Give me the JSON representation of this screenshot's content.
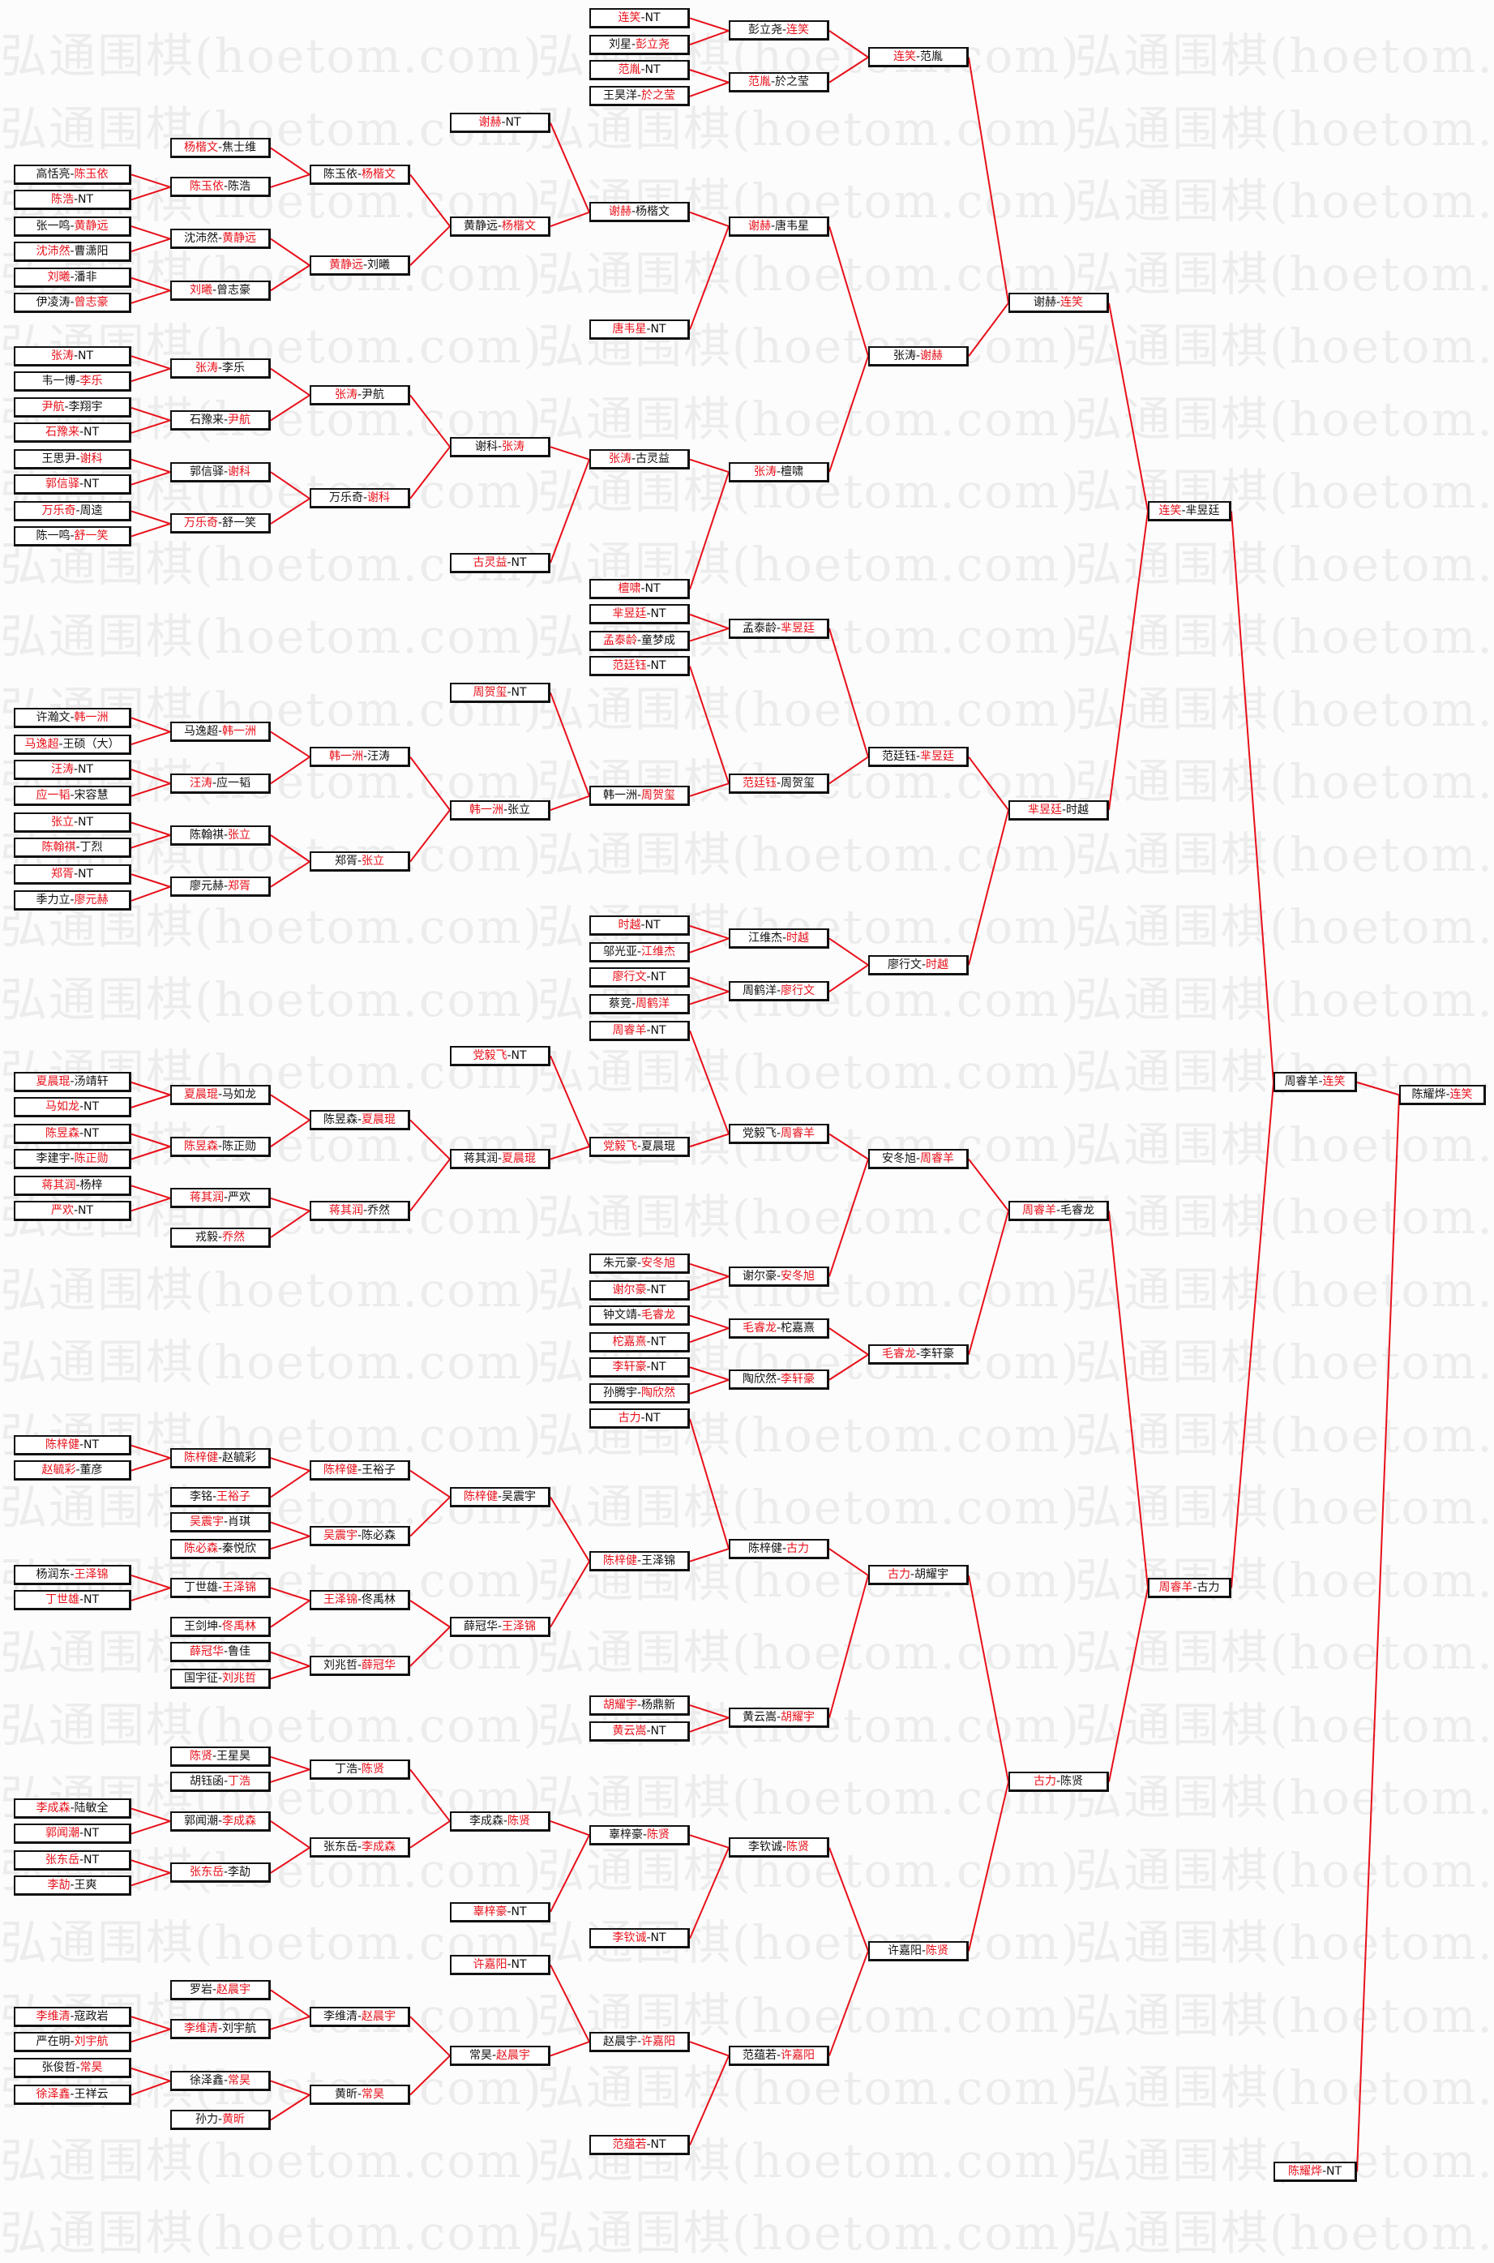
{
  "watermark": "弘通围棋(hoetom.com)",
  "colors": {
    "winner": "#e8101a",
    "line": "#e8101a",
    "box_border": "#111111",
    "text": "#111111"
  },
  "separator": "-",
  "bracket": {
    "columns": [
      [
        {
          "a": "高恬亮",
          "b": "陈玉依",
          "w": "b"
        },
        {
          "a": "陈浩",
          "b": "NT",
          "w": "a"
        },
        {
          "a": "张一鸣",
          "b": "黄静远",
          "w": "b"
        },
        {
          "a": "沈沛然",
          "b": "曹潇阳",
          "w": "a"
        },
        {
          "a": "刘曦",
          "b": "潘非",
          "w": "a"
        },
        {
          "a": "伊凌涛",
          "b": "曾志豪",
          "w": "b"
        },
        {
          "a": "张涛",
          "b": "NT",
          "w": "a"
        },
        {
          "a": "韦一博",
          "b": "李乐",
          "w": "b"
        },
        {
          "a": "尹航",
          "b": "李翔宇",
          "w": "a"
        },
        {
          "a": "石豫来",
          "b": "NT",
          "w": "a"
        },
        {
          "a": "王思尹",
          "b": "谢科",
          "w": "b"
        },
        {
          "a": "郭信驿",
          "b": "NT",
          "w": "a"
        },
        {
          "a": "万乐奇",
          "b": "周逵",
          "w": "a"
        },
        {
          "a": "陈一鸣",
          "b": "舒一笑",
          "w": "b"
        },
        {
          "a": "许瀚文",
          "b": "韩一洲",
          "w": "b"
        },
        {
          "a": "马逸超",
          "b": "王硕（大）",
          "w": "a"
        },
        {
          "a": "汪涛",
          "b": "NT",
          "w": "a"
        },
        {
          "a": "应一韬",
          "b": "宋容慧",
          "w": "a"
        },
        {
          "a": "张立",
          "b": "NT",
          "w": "a"
        },
        {
          "a": "陈翰祺",
          "b": "丁烈",
          "w": "a"
        },
        {
          "a": "郑胥",
          "b": "NT",
          "w": "a"
        },
        {
          "a": "季力立",
          "b": "廖元赫",
          "w": "b"
        },
        {
          "a": "夏晨琨",
          "b": "汤靖轩",
          "w": "a"
        },
        {
          "a": "马如龙",
          "b": "NT",
          "w": "a"
        },
        {
          "a": "陈昱森",
          "b": "NT",
          "w": "a"
        },
        {
          "a": "李建宇",
          "b": "陈正勋",
          "w": "b"
        },
        {
          "a": "蒋其润",
          "b": "杨梓",
          "w": "a"
        },
        {
          "a": "严欢",
          "b": "NT",
          "w": "a"
        },
        {
          "a": "陈梓健",
          "b": "NT",
          "w": "a"
        },
        {
          "a": "赵毓彩",
          "b": "董彦",
          "w": "a"
        },
        {
          "a": "杨润东",
          "b": "王泽锦",
          "w": "b"
        },
        {
          "a": "丁世雄",
          "b": "NT",
          "w": "a"
        },
        {
          "a": "李成森",
          "b": "陆敏全",
          "w": "a"
        },
        {
          "a": "郭闻潮",
          "b": "NT",
          "w": "a"
        },
        {
          "a": "张东岳",
          "b": "NT",
          "w": "a"
        },
        {
          "a": "李劼",
          "b": "王爽",
          "w": "a"
        },
        {
          "a": "李维清",
          "b": "寇政岩",
          "w": "a"
        },
        {
          "a": "严在明",
          "b": "刘宇航",
          "w": "b"
        },
        {
          "a": "张俊哲",
          "b": "常昊",
          "w": "b"
        },
        {
          "a": "徐泽鑫",
          "b": "王祥云",
          "w": "a"
        }
      ],
      [
        {
          "a": "杨楷文",
          "b": "焦士维",
          "w": "a"
        },
        {
          "a": "陈玉依",
          "b": "陈浩",
          "w": "a"
        },
        {
          "a": "沈沛然",
          "b": "黄静远",
          "w": "b"
        },
        {
          "a": "刘曦",
          "b": "曾志豪",
          "w": "a"
        },
        {
          "a": "张涛",
          "b": "李乐",
          "w": "a"
        },
        {
          "a": "石豫来",
          "b": "尹航",
          "w": "b"
        },
        {
          "a": "郭信驿",
          "b": "谢科",
          "w": "b"
        },
        {
          "a": "万乐奇",
          "b": "舒一笑",
          "w": "a"
        },
        {
          "a": "马逸超",
          "b": "韩一洲",
          "w": "b"
        },
        {
          "a": "汪涛",
          "b": "应一韬",
          "w": "a"
        },
        {
          "a": "陈翰祺",
          "b": "张立",
          "w": "b"
        },
        {
          "a": "廖元赫",
          "b": "郑胥",
          "w": "b"
        },
        {
          "a": "夏晨琨",
          "b": "马如龙",
          "w": "a"
        },
        {
          "a": "陈昱森",
          "b": "陈正勋",
          "w": "a"
        },
        {
          "a": "蒋其润",
          "b": "严欢",
          "w": "a"
        },
        {
          "a": "戎毅",
          "b": "乔然",
          "w": "b"
        },
        {
          "a": "陈梓健",
          "b": "赵毓彩",
          "w": "a"
        },
        {
          "a": "李铭",
          "b": "王裕子",
          "w": "b"
        },
        {
          "a": "吴震宇",
          "b": "肖琪",
          "w": "a"
        },
        {
          "a": "陈必森",
          "b": "秦悦欣",
          "w": "a"
        },
        {
          "a": "丁世雄",
          "b": "王泽锦",
          "w": "b"
        },
        {
          "a": "王剑坤",
          "b": "佟禹林",
          "w": "b"
        },
        {
          "a": "薛冠华",
          "b": "鲁佳",
          "w": "a"
        },
        {
          "a": "国宇征",
          "b": "刘兆哲",
          "w": "b"
        },
        {
          "a": "陈贤",
          "b": "王星昊",
          "w": "a"
        },
        {
          "a": "胡钰函",
          "b": "丁浩",
          "w": "b"
        },
        {
          "a": "郭闻潮",
          "b": "李成森",
          "w": "b"
        },
        {
          "a": "张东岳",
          "b": "李劼",
          "w": "a"
        },
        {
          "a": "罗岩",
          "b": "赵晨宇",
          "w": "b"
        },
        {
          "a": "李维清",
          "b": "刘宇航",
          "w": "a"
        },
        {
          "a": "徐泽鑫",
          "b": "常昊",
          "w": "b"
        },
        {
          "a": "孙力",
          "b": "黄昕",
          "w": "b"
        }
      ],
      [
        {
          "a": "陈玉依",
          "b": "杨楷文",
          "w": "b"
        },
        {
          "a": "黄静远",
          "b": "刘曦",
          "w": "a"
        },
        {
          "a": "张涛",
          "b": "尹航",
          "w": "a"
        },
        {
          "a": "万乐奇",
          "b": "谢科",
          "w": "b"
        },
        {
          "a": "韩一洲",
          "b": "汪涛",
          "w": "a"
        },
        {
          "a": "郑胥",
          "b": "张立",
          "w": "b"
        },
        {
          "a": "陈昱森",
          "b": "夏晨琨",
          "w": "b"
        },
        {
          "a": "蒋其润",
          "b": "乔然",
          "w": "a"
        },
        {
          "a": "陈梓健",
          "b": "王裕子",
          "w": "a"
        },
        {
          "a": "吴震宇",
          "b": "陈必森",
          "w": "a"
        },
        {
          "a": "王泽锦",
          "b": "佟禹林",
          "w": "a"
        },
        {
          "a": "刘兆哲",
          "b": "薛冠华",
          "w": "b"
        },
        {
          "a": "丁浩",
          "b": "陈贤",
          "w": "b"
        },
        {
          "a": "张东岳",
          "b": "李成森",
          "w": "b"
        },
        {
          "a": "李维清",
          "b": "赵晨宇",
          "w": "b"
        },
        {
          "a": "黄昕",
          "b": "常昊",
          "w": "b"
        }
      ],
      [
        {
          "a": "谢赫",
          "b": "NT",
          "w": "a"
        },
        {
          "a": "黄静远",
          "b": "杨楷文",
          "w": "b"
        },
        {
          "a": "谢科",
          "b": "张涛",
          "w": "b"
        },
        {
          "a": "古灵益",
          "b": "NT",
          "w": "a"
        },
        {
          "a": "周贺玺",
          "b": "NT",
          "w": "a"
        },
        {
          "a": "韩一洲",
          "b": "张立",
          "w": "a"
        },
        {
          "a": "党毅飞",
          "b": "NT",
          "w": "a"
        },
        {
          "a": "蒋其润",
          "b": "夏晨琨",
          "w": "b"
        },
        {
          "a": "陈梓健",
          "b": "吴震宇",
          "w": "a"
        },
        {
          "a": "薛冠华",
          "b": "王泽锦",
          "w": "b"
        },
        {
          "a": "李成森",
          "b": "陈贤",
          "w": "b"
        },
        {
          "a": "辜梓豪",
          "b": "NT",
          "w": "a"
        },
        {
          "a": "许嘉阳",
          "b": "NT",
          "w": "a"
        },
        {
          "a": "常昊",
          "b": "赵晨宇",
          "w": "b"
        }
      ],
      [
        {
          "a": "连笑",
          "b": "NT",
          "w": "a"
        },
        {
          "a": "刘星",
          "b": "彭立尧",
          "w": "b"
        },
        {
          "a": "范胤",
          "b": "NT",
          "w": "a"
        },
        {
          "a": "王昊洋",
          "b": "於之莹",
          "w": "b"
        },
        {
          "a": "谢赫",
          "b": "杨楷文",
          "w": "a"
        },
        {
          "a": "唐韦星",
          "b": "NT",
          "w": "a"
        },
        {
          "a": "张涛",
          "b": "古灵益",
          "w": "a"
        },
        {
          "a": "檀啸",
          "b": "NT",
          "w": "a"
        },
        {
          "a": "芈昱廷",
          "b": "NT",
          "w": "a"
        },
        {
          "a": "孟泰龄",
          "b": "童梦成",
          "w": "a"
        },
        {
          "a": "范廷钰",
          "b": "NT",
          "w": "a"
        },
        {
          "a": "韩一洲",
          "b": "周贺玺",
          "w": "b"
        },
        {
          "a": "时越",
          "b": "NT",
          "w": "a"
        },
        {
          "a": "邬光亚",
          "b": "江维杰",
          "w": "b"
        },
        {
          "a": "廖行文",
          "b": "NT",
          "w": "a"
        },
        {
          "a": "蔡竞",
          "b": "周鹤洋",
          "w": "b"
        },
        {
          "a": "周睿羊",
          "b": "NT",
          "w": "a"
        },
        {
          "a": "党毅飞",
          "b": "夏晨琨",
          "w": "a"
        },
        {
          "a": "朱元豪",
          "b": "安冬旭",
          "w": "b"
        },
        {
          "a": "谢尔豪",
          "b": "NT",
          "w": "a"
        },
        {
          "a": "钟文靖",
          "b": "毛睿龙",
          "w": "b"
        },
        {
          "a": "柁嘉熹",
          "b": "NT",
          "w": "a"
        },
        {
          "a": "李轩豪",
          "b": "NT",
          "w": "a"
        },
        {
          "a": "孙腾宇",
          "b": "陶欣然",
          "w": "b"
        },
        {
          "a": "古力",
          "b": "NT",
          "w": "a"
        },
        {
          "a": "陈梓健",
          "b": "王泽锦",
          "w": "a"
        },
        {
          "a": "胡耀宇",
          "b": "杨鼎新",
          "w": "a"
        },
        {
          "a": "黄云嵩",
          "b": "NT",
          "w": "a"
        },
        {
          "a": "辜梓豪",
          "b": "陈贤",
          "w": "b"
        },
        {
          "a": "李钦诚",
          "b": "NT",
          "w": "a"
        },
        {
          "a": "赵晨宇",
          "b": "许嘉阳",
          "w": "b"
        },
        {
          "a": "范蕴若",
          "b": "NT",
          "w": "a"
        }
      ],
      [
        {
          "a": "彭立尧",
          "b": "连笑",
          "w": "b"
        },
        {
          "a": "范胤",
          "b": "於之莹",
          "w": "a"
        },
        {
          "a": "谢赫",
          "b": "唐韦星",
          "w": "a"
        },
        {
          "a": "张涛",
          "b": "檀啸",
          "w": "a"
        },
        {
          "a": "孟泰龄",
          "b": "芈昱廷",
          "w": "b"
        },
        {
          "a": "范廷钰",
          "b": "周贺玺",
          "w": "a"
        },
        {
          "a": "江维杰",
          "b": "时越",
          "w": "b"
        },
        {
          "a": "周鹤洋",
          "b": "廖行文",
          "w": "b"
        },
        {
          "a": "党毅飞",
          "b": "周睿羊",
          "w": "b"
        },
        {
          "a": "谢尔豪",
          "b": "安冬旭",
          "w": "b"
        },
        {
          "a": "毛睿龙",
          "b": "柁嘉熹",
          "w": "a"
        },
        {
          "a": "陶欣然",
          "b": "李轩豪",
          "w": "b"
        },
        {
          "a": "陈梓健",
          "b": "古力",
          "w": "b"
        },
        {
          "a": "黄云嵩",
          "b": "胡耀宇",
          "w": "b"
        },
        {
          "a": "李钦诚",
          "b": "陈贤",
          "w": "b"
        },
        {
          "a": "范蕴若",
          "b": "许嘉阳",
          "w": "b"
        }
      ],
      [
        {
          "a": "连笑",
          "b": "范胤",
          "w": "a"
        },
        {
          "a": "张涛",
          "b": "谢赫",
          "w": "b"
        },
        {
          "a": "范廷钰",
          "b": "芈昱廷",
          "w": "b"
        },
        {
          "a": "廖行文",
          "b": "时越",
          "w": "b"
        },
        {
          "a": "安冬旭",
          "b": "周睿羊",
          "w": "b"
        },
        {
          "a": "毛睿龙",
          "b": "李轩豪",
          "w": "a"
        },
        {
          "a": "古力",
          "b": "胡耀宇",
          "w": "a"
        },
        {
          "a": "许嘉阳",
          "b": "陈贤",
          "w": "b"
        }
      ],
      [
        {
          "a": "谢赫",
          "b": "连笑",
          "w": "b"
        },
        {
          "a": "芈昱廷",
          "b": "时越",
          "w": "a"
        },
        {
          "a": "周睿羊",
          "b": "毛睿龙",
          "w": "a"
        },
        {
          "a": "古力",
          "b": "陈贤",
          "w": "a"
        }
      ],
      [
        {
          "a": "连笑",
          "b": "芈昱廷",
          "w": "a"
        },
        {
          "a": "周睿羊",
          "b": "古力",
          "w": "a"
        }
      ],
      [
        {
          "a": "周睿羊",
          "b": "连笑",
          "w": "b"
        },
        {
          "a": "陈耀烨",
          "b": "NT",
          "w": "a"
        }
      ],
      [
        {
          "a": "陈耀烨",
          "b": "连笑",
          "w": "b"
        }
      ]
    ]
  }
}
